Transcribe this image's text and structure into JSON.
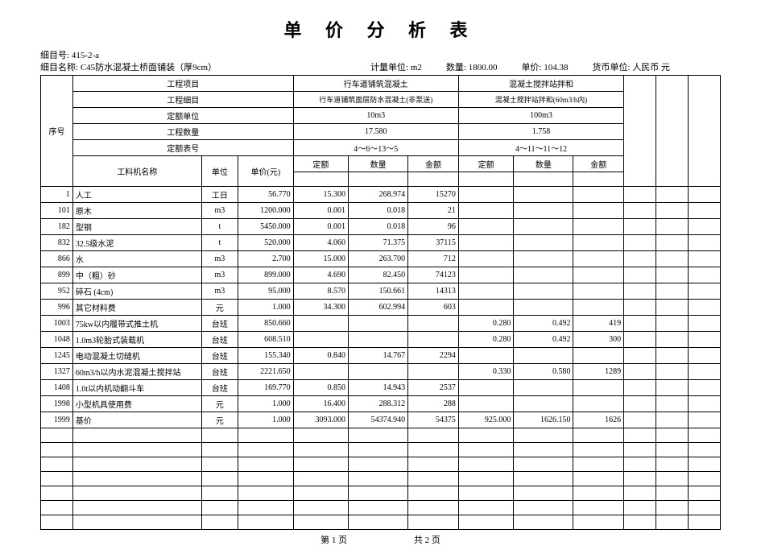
{
  "title": "单 价 分 析 表",
  "meta": {
    "code_label": "细目号:",
    "code": "415-2-a",
    "name_label": "细目名称:",
    "name": "C45防水混凝土桥面铺装（厚9cm）",
    "unit_label": "计量单位:",
    "unit": "m2",
    "qty_label": "数量:",
    "qty": "1800.00",
    "price_label": "单价:",
    "price": "104.38",
    "currency_label": "货币单位:",
    "currency": "人民币 元"
  },
  "header": {
    "seq": "序号",
    "project_item": "工程项目",
    "project_sub": "工程细目",
    "quota_unit": "定额单位",
    "project_qty": "工程数量",
    "quota_no": "定额表号",
    "mat_name": "工料机名称",
    "unit": "单位",
    "unit_price": "单价(元)",
    "quota": "定额",
    "qty": "数量",
    "amount": "金额",
    "col1_title": "行车道铺筑混凝土",
    "col1_sub": "行车道铺筑面层防水混凝土(非泵送)",
    "col1_unit": "10m3",
    "col1_qty": "17.580",
    "col1_code": "4～6～13～5",
    "col2_title": "混凝土搅拌站拌和",
    "col2_sub": "混凝土搅拌站拌和(60m3/h内)",
    "col2_unit": "100m3",
    "col2_qty": "1.758",
    "col2_code": "4～11～11～12"
  },
  "rows": [
    {
      "no": "1",
      "name": "人工",
      "unit": "工日",
      "price": "56.770",
      "q1": "15.300",
      "n1": "268.974",
      "a1": "15270",
      "q2": "",
      "n2": "",
      "a2": ""
    },
    {
      "no": "101",
      "name": "原木",
      "unit": "m3",
      "price": "1200.000",
      "q1": "0.001",
      "n1": "0.018",
      "a1": "21",
      "q2": "",
      "n2": "",
      "a2": ""
    },
    {
      "no": "182",
      "name": "型钢",
      "unit": "t",
      "price": "5450.000",
      "q1": "0.001",
      "n1": "0.018",
      "a1": "96",
      "q2": "",
      "n2": "",
      "a2": ""
    },
    {
      "no": "832",
      "name": "32.5级水泥",
      "unit": "t",
      "price": "520.000",
      "q1": "4.060",
      "n1": "71.375",
      "a1": "37115",
      "q2": "",
      "n2": "",
      "a2": ""
    },
    {
      "no": "866",
      "name": "水",
      "unit": "m3",
      "price": "2.700",
      "q1": "15.000",
      "n1": "263.700",
      "a1": "712",
      "q2": "",
      "n2": "",
      "a2": ""
    },
    {
      "no": "899",
      "name": "中（粗）砂",
      "unit": "m3",
      "price": "899.000",
      "q1": "4.690",
      "n1": "82.450",
      "a1": "74123",
      "q2": "",
      "n2": "",
      "a2": ""
    },
    {
      "no": "952",
      "name": "碎石 (4cm)",
      "unit": "m3",
      "price": "95.000",
      "q1": "8.570",
      "n1": "150.661",
      "a1": "14313",
      "q2": "",
      "n2": "",
      "a2": ""
    },
    {
      "no": "996",
      "name": "其它材料费",
      "unit": "元",
      "price": "1.000",
      "q1": "34.300",
      "n1": "602.994",
      "a1": "603",
      "q2": "",
      "n2": "",
      "a2": ""
    },
    {
      "no": "1003",
      "name": "75kw以内履带式推土机",
      "unit": "台班",
      "price": "850.660",
      "q1": "",
      "n1": "",
      "a1": "",
      "q2": "0.280",
      "n2": "0.492",
      "a2": "419"
    },
    {
      "no": "1048",
      "name": "1.0m3轮胎式装载机",
      "unit": "台班",
      "price": "608.510",
      "q1": "",
      "n1": "",
      "a1": "",
      "q2": "0.280",
      "n2": "0.492",
      "a2": "300"
    },
    {
      "no": "1245",
      "name": "电动混凝土切缝机",
      "unit": "台班",
      "price": "155.340",
      "q1": "0.840",
      "n1": "14.767",
      "a1": "2294",
      "q2": "",
      "n2": "",
      "a2": ""
    },
    {
      "no": "1327",
      "name": "60m3/h以内水泥混凝土搅拌站",
      "unit": "台班",
      "price": "2221.650",
      "q1": "",
      "n1": "",
      "a1": "",
      "q2": "0.330",
      "n2": "0.580",
      "a2": "1289"
    },
    {
      "no": "1408",
      "name": "1.0t以内机动翻斗车",
      "unit": "台班",
      "price": "169.770",
      "q1": "0.850",
      "n1": "14.943",
      "a1": "2537",
      "q2": "",
      "n2": "",
      "a2": ""
    },
    {
      "no": "1998",
      "name": "小型机具使用费",
      "unit": "元",
      "price": "1.000",
      "q1": "16.400",
      "n1": "288.312",
      "a1": "288",
      "q2": "",
      "n2": "",
      "a2": ""
    },
    {
      "no": "1999",
      "name": "基价",
      "unit": "元",
      "price": "1.000",
      "q1": "3093.000",
      "n1": "54374.940",
      "a1": "54375",
      "q2": "925.000",
      "n2": "1626.150",
      "a2": "1626"
    }
  ],
  "empty_rows": 7,
  "footer": {
    "page": "第 1 页",
    "total": "共 2 页"
  }
}
